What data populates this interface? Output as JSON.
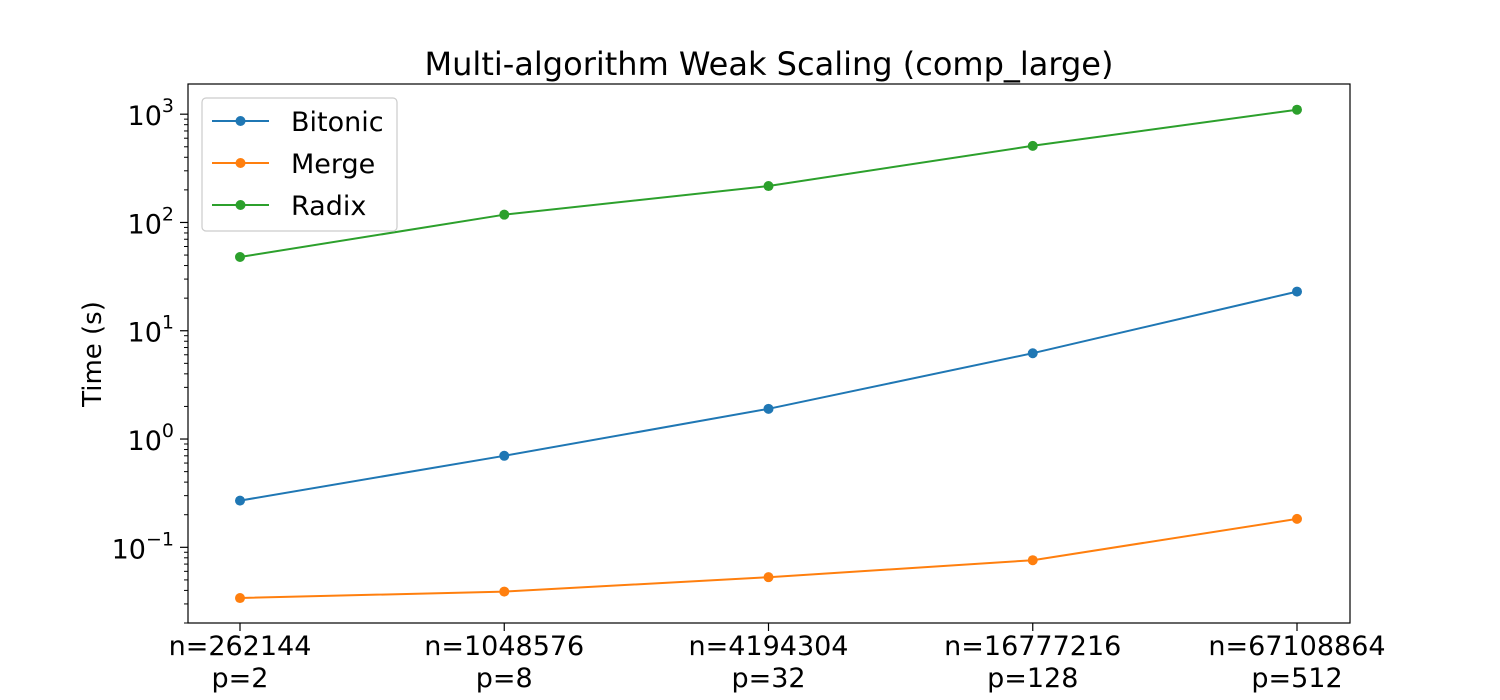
{
  "chart_data": {
    "type": "line",
    "title": "Multi-algorithm Weak Scaling (comp_large)",
    "xlabel": "",
    "ylabel": "Time (s)",
    "yscale": "log",
    "ylim": [
      0.02,
      1900
    ],
    "grid": false,
    "legend_position": "top-left",
    "categories": [
      {
        "n": "n=262144",
        "p": "p=2"
      },
      {
        "n": "n=1048576",
        "p": "p=8"
      },
      {
        "n": "n=4194304",
        "p": "p=32"
      },
      {
        "n": "n=16777216",
        "p": "p=128"
      },
      {
        "n": "n=67108864",
        "p": "p=512"
      }
    ],
    "y_ticks": [
      {
        "base": "10",
        "exp": "3",
        "value": 1000
      },
      {
        "base": "10",
        "exp": "2",
        "value": 100
      },
      {
        "base": "10",
        "exp": "1",
        "value": 10
      },
      {
        "base": "10",
        "exp": "0",
        "value": 1
      },
      {
        "base": "10",
        "exp": "−1",
        "value": 0.1
      }
    ],
    "series": [
      {
        "name": "Bitonic",
        "color": "#1f77b4",
        "values": [
          0.27,
          0.7,
          1.9,
          6.2,
          23
        ]
      },
      {
        "name": "Merge",
        "color": "#ff7f0e",
        "values": [
          0.034,
          0.039,
          0.053,
          0.076,
          0.183
        ]
      },
      {
        "name": "Radix",
        "color": "#2ca02c",
        "values": [
          48,
          118,
          217,
          510,
          1100
        ]
      }
    ]
  }
}
